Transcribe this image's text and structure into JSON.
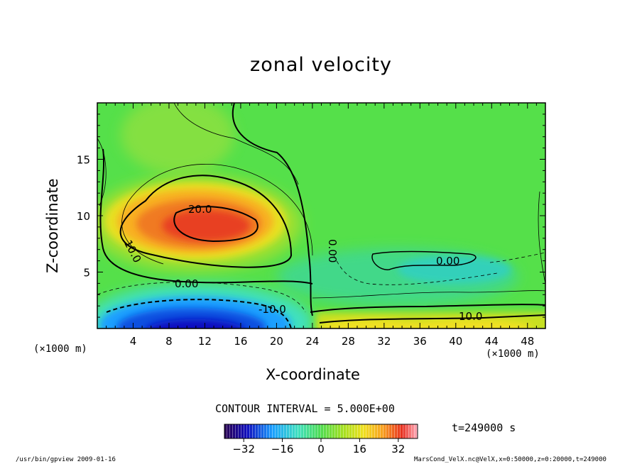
{
  "chart_data": {
    "type": "heatmap",
    "title": "zonal velocity",
    "xlabel": "X-coordinate",
    "ylabel": "Z-coordinate",
    "x_unit": "(×1000 m)",
    "y_unit": "(×1000 m)",
    "xlim": [
      0,
      50
    ],
    "ylim": [
      0,
      20
    ],
    "x_ticks": [
      4,
      8,
      12,
      16,
      20,
      24,
      28,
      32,
      36,
      40,
      44,
      48
    ],
    "y_ticks": [
      5,
      10,
      15
    ],
    "contour_interval_text": "CONTOUR INTERVAL = 5.000E+00",
    "contour_labels": [
      "20.0",
      "10.0",
      "0.00",
      "0.00",
      "-10.0",
      "10.0",
      "0.00"
    ],
    "colorbar": {
      "range": [
        -40,
        40
      ],
      "ticks": [
        "−32",
        "−16",
        "0",
        "16",
        "32"
      ]
    },
    "features": [
      {
        "name": "positive jet core",
        "x": 12,
        "z": 9.2,
        "value": 25
      },
      {
        "name": "negative surface jet",
        "x": 11,
        "z": 0.5,
        "value": -30
      },
      {
        "name": "positive surface flow",
        "x": 36,
        "z": 0.8,
        "value": 10
      }
    ],
    "time_label": "t=249000 s"
  },
  "footer": {
    "left": "/usr/bin/gpview  2009-01-16",
    "right": "MarsCond_VelX.nc@VelX,x=0:50000,z=0:20000,t=249000"
  },
  "colors": {
    "background_green": "#55e04a",
    "positive_core": "#ee3a1a",
    "negative_core": "#1010c0"
  }
}
